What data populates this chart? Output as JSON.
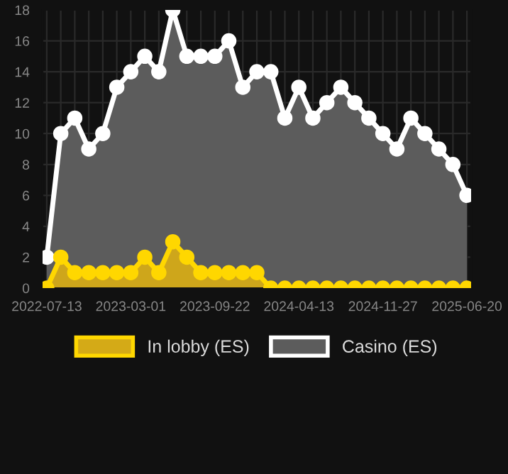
{
  "chart_data": {
    "type": "area",
    "categories": [
      "2022-07-13",
      null,
      null,
      null,
      null,
      null,
      "2023-03-01",
      null,
      null,
      null,
      null,
      null,
      "2023-09-22",
      null,
      null,
      null,
      null,
      null,
      "2024-04-13",
      null,
      null,
      null,
      null,
      null,
      "2024-11-27",
      null,
      null,
      null,
      null,
      null,
      "2025-06-20"
    ],
    "series": [
      {
        "name": "In lobby (ES)",
        "color": "#ffd700",
        "values": [
          0,
          2,
          1,
          1,
          1,
          1,
          1,
          2,
          1,
          3,
          2,
          1,
          1,
          1,
          1,
          1,
          0,
          0,
          0,
          0,
          0,
          0,
          0,
          0,
          0,
          0,
          0,
          0,
          0,
          0,
          0
        ]
      },
      {
        "name": "Casino (ES)",
        "color": "#ffffff",
        "values": [
          2,
          10,
          11,
          9,
          10,
          13,
          14,
          15,
          14,
          18,
          15,
          15,
          15,
          16,
          13,
          14,
          14,
          11,
          13,
          11,
          12,
          13,
          12,
          11,
          10,
          9,
          11,
          10,
          9,
          8,
          6
        ]
      }
    ],
    "ylim": [
      0,
      18
    ],
    "yticks": [
      0,
      2,
      4,
      6,
      8,
      10,
      12,
      14,
      16,
      18
    ],
    "grid": true,
    "legend": "bottom",
    "marker": "circle",
    "line_style": "solid"
  }
}
